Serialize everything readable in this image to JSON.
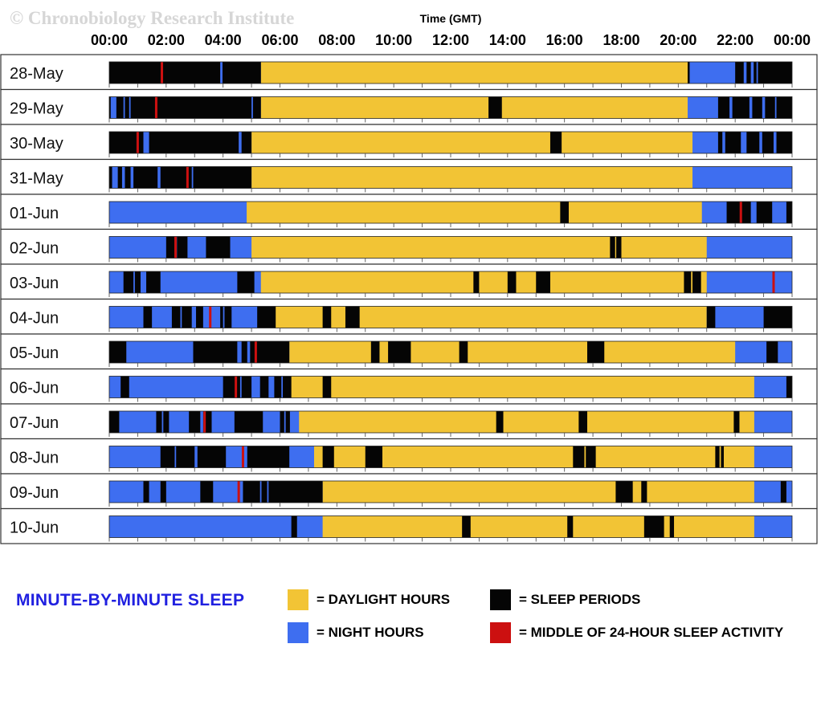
{
  "watermark": "© Chronobiology Research Institute",
  "chart_data": {
    "type": "timeline",
    "xlabel": "Time (GMT)",
    "x_range": [
      0,
      24
    ],
    "x_tick_labels": [
      "00:00",
      "02:00",
      "04:00",
      "06:00",
      "08:00",
      "10:00",
      "12:00",
      "14:00",
      "16:00",
      "18:00",
      "20:00",
      "22:00",
      "00:00"
    ],
    "colors": {
      "daylight": "#f2c435",
      "night": "#3e6ef0",
      "sleep": "#050505",
      "midpoint": "#cc1010"
    },
    "days": [
      {
        "label": "28-May",
        "daylight": [
          5.33,
          20.33
        ],
        "sleep": [
          [
            0,
            5.33
          ],
          [
            20.33,
            20.4
          ],
          [
            22.0,
            24.0
          ]
        ],
        "wake": [
          [
            3.9,
            3.98
          ],
          [
            22.3,
            22.4
          ],
          [
            22.55,
            22.65
          ],
          [
            22.75,
            22.8
          ]
        ],
        "midpoint": 1.85
      },
      {
        "label": "29-May",
        "daylight": [
          5.33,
          20.33
        ],
        "sleep": [
          [
            0,
            5.33
          ],
          [
            13.33,
            13.8
          ],
          [
            21.4,
            24
          ]
        ],
        "wake": [
          [
            0.05,
            0.25
          ],
          [
            0.5,
            0.55
          ],
          [
            0.7,
            0.75
          ],
          [
            5.0,
            5.05
          ],
          [
            21.8,
            21.9
          ],
          [
            22.5,
            22.6
          ],
          [
            22.95,
            23.05
          ],
          [
            23.4,
            23.45
          ]
        ],
        "midpoint": 1.65
      },
      {
        "label": "30-May",
        "daylight": [
          5.0,
          20.5
        ],
        "sleep": [
          [
            0,
            5.0
          ],
          [
            15.5,
            15.9
          ],
          [
            21.4,
            24
          ]
        ],
        "wake": [
          [
            1.2,
            1.4
          ],
          [
            4.55,
            4.65
          ],
          [
            21.55,
            21.65
          ],
          [
            22.2,
            22.4
          ],
          [
            22.85,
            22.95
          ],
          [
            23.35,
            23.45
          ]
        ],
        "midpoint": 1.0
      },
      {
        "label": "31-May",
        "daylight": [
          5.0,
          20.5
        ],
        "sleep": [
          [
            0,
            5.0
          ]
        ],
        "wake": [
          [
            0.1,
            0.3
          ],
          [
            0.45,
            0.55
          ],
          [
            0.75,
            0.85
          ],
          [
            1.7,
            1.8
          ],
          [
            2.9,
            2.95
          ]
        ],
        "midpoint": 2.75
      },
      {
        "label": "01-Jun",
        "daylight": [
          4.83,
          20.83
        ],
        "sleep": [
          [
            15.85,
            16.15
          ],
          [
            21.7,
            22.55
          ],
          [
            22.75,
            23.3
          ],
          [
            23.8,
            24
          ]
        ],
        "wake": [
          [
            22.6,
            22.7
          ]
        ],
        "midpoint": 22.2
      },
      {
        "label": "02-Jun",
        "daylight": [
          5.0,
          21.0
        ],
        "sleep": [
          [
            2.0,
            2.75
          ],
          [
            3.4,
            4.25
          ],
          [
            17.6,
            18.0
          ]
        ],
        "wake": [
          [
            2.3,
            2.38
          ],
          [
            17.78,
            17.82
          ]
        ],
        "midpoint": 2.33
      },
      {
        "label": "03-Jun",
        "daylight": [
          5.33,
          21.0
        ],
        "sleep": [
          [
            0.5,
            1.1
          ],
          [
            1.3,
            1.8
          ],
          [
            4.5,
            5.1
          ],
          [
            12.8,
            13.0
          ],
          [
            14.0,
            14.3
          ],
          [
            15.0,
            15.5
          ],
          [
            20.2,
            20.8
          ]
        ],
        "wake": [
          [
            0.85,
            0.9
          ],
          [
            20.45,
            20.5
          ]
        ],
        "midpoint": 23.35
      },
      {
        "label": "04-Jun",
        "daylight": [
          5.6,
          21.0
        ],
        "sleep": [
          [
            1.2,
            1.5
          ],
          [
            2.2,
            2.9
          ],
          [
            3.05,
            3.3
          ],
          [
            3.9,
            4.3
          ],
          [
            5.2,
            5.85
          ],
          [
            7.5,
            7.8
          ],
          [
            8.3,
            8.8
          ],
          [
            21.0,
            21.3
          ],
          [
            23.0,
            24.0
          ]
        ],
        "wake": [
          [
            2.5,
            2.55
          ],
          [
            4.0,
            4.05
          ]
        ],
        "midpoint": 3.55
      },
      {
        "label": "05-Jun",
        "daylight": [
          6.33,
          22.0
        ],
        "sleep": [
          [
            0,
            0.6
          ],
          [
            2.95,
            6.33
          ],
          [
            9.2,
            9.5
          ],
          [
            9.8,
            10.6
          ],
          [
            12.3,
            12.6
          ],
          [
            16.8,
            17.4
          ],
          [
            23.1,
            23.5
          ]
        ],
        "wake": [
          [
            4.5,
            4.65
          ],
          [
            4.85,
            4.95
          ]
        ],
        "midpoint": 5.15
      },
      {
        "label": "06-Jun",
        "daylight": [
          6.33,
          22.67
        ],
        "sleep": [
          [
            0.4,
            0.7
          ],
          [
            4.0,
            5.0
          ],
          [
            5.3,
            5.6
          ],
          [
            5.8,
            6.4
          ],
          [
            7.5,
            7.8
          ],
          [
            23.8,
            24.0
          ]
        ],
        "wake": [
          [
            4.6,
            4.65
          ],
          [
            6.05,
            6.1
          ]
        ],
        "midpoint": 4.45
      },
      {
        "label": "07-Jun",
        "daylight": [
          6.67,
          22.67
        ],
        "sleep": [
          [
            0,
            0.35
          ],
          [
            1.65,
            2.1
          ],
          [
            2.8,
            3.2
          ],
          [
            3.3,
            3.6
          ],
          [
            4.4,
            5.4
          ],
          [
            6.0,
            6.35
          ],
          [
            13.6,
            13.85
          ],
          [
            16.5,
            16.8
          ],
          [
            21.95,
            22.15
          ]
        ],
        "wake": [
          [
            1.85,
            1.9
          ],
          [
            6.15,
            6.2
          ]
        ],
        "midpoint": 3.35
      },
      {
        "label": "08-Jun",
        "daylight": [
          7.2,
          22.67
        ],
        "sleep": [
          [
            1.8,
            3.0
          ],
          [
            3.1,
            4.1
          ],
          [
            4.85,
            6.33
          ],
          [
            7.5,
            7.9
          ],
          [
            9.0,
            9.6
          ],
          [
            16.3,
            17.1
          ],
          [
            21.3,
            21.6
          ]
        ],
        "wake": [
          [
            2.3,
            2.35
          ],
          [
            16.7,
            16.75
          ],
          [
            21.45,
            21.5
          ]
        ],
        "midpoint": 4.7
      },
      {
        "label": "09-Jun",
        "daylight": [
          7.5,
          22.67
        ],
        "sleep": [
          [
            1.2,
            1.4
          ],
          [
            1.8,
            2.0
          ],
          [
            3.2,
            3.65
          ],
          [
            4.7,
            7.5
          ],
          [
            17.8,
            18.4
          ],
          [
            18.7,
            18.9
          ],
          [
            23.6,
            23.8
          ]
        ],
        "wake": [
          [
            5.3,
            5.35
          ],
          [
            5.55,
            5.6
          ]
        ],
        "midpoint": 4.55
      },
      {
        "label": "10-Jun",
        "daylight": [
          7.5,
          22.67
        ],
        "sleep": [
          [
            6.4,
            6.6
          ],
          [
            12.4,
            12.7
          ],
          [
            16.1,
            16.3
          ],
          [
            18.8,
            19.5
          ],
          [
            19.7,
            19.85
          ]
        ],
        "wake": [],
        "midpoint": null
      }
    ]
  },
  "legend": {
    "title": "MINUTE-BY-MINUTE SLEEP",
    "items": [
      {
        "key": "daylight",
        "label": "= DAYLIGHT HOURS",
        "color": "#f2c435"
      },
      {
        "key": "sleep",
        "label": "= SLEEP PERIODS",
        "color": "#050505"
      },
      {
        "key": "night",
        "label": "= NIGHT HOURS",
        "color": "#3e6ef0"
      },
      {
        "key": "midpoint",
        "label": "= MIDDLE OF 24-HOUR SLEEP ACTIVITY",
        "color": "#cc1010"
      }
    ]
  }
}
